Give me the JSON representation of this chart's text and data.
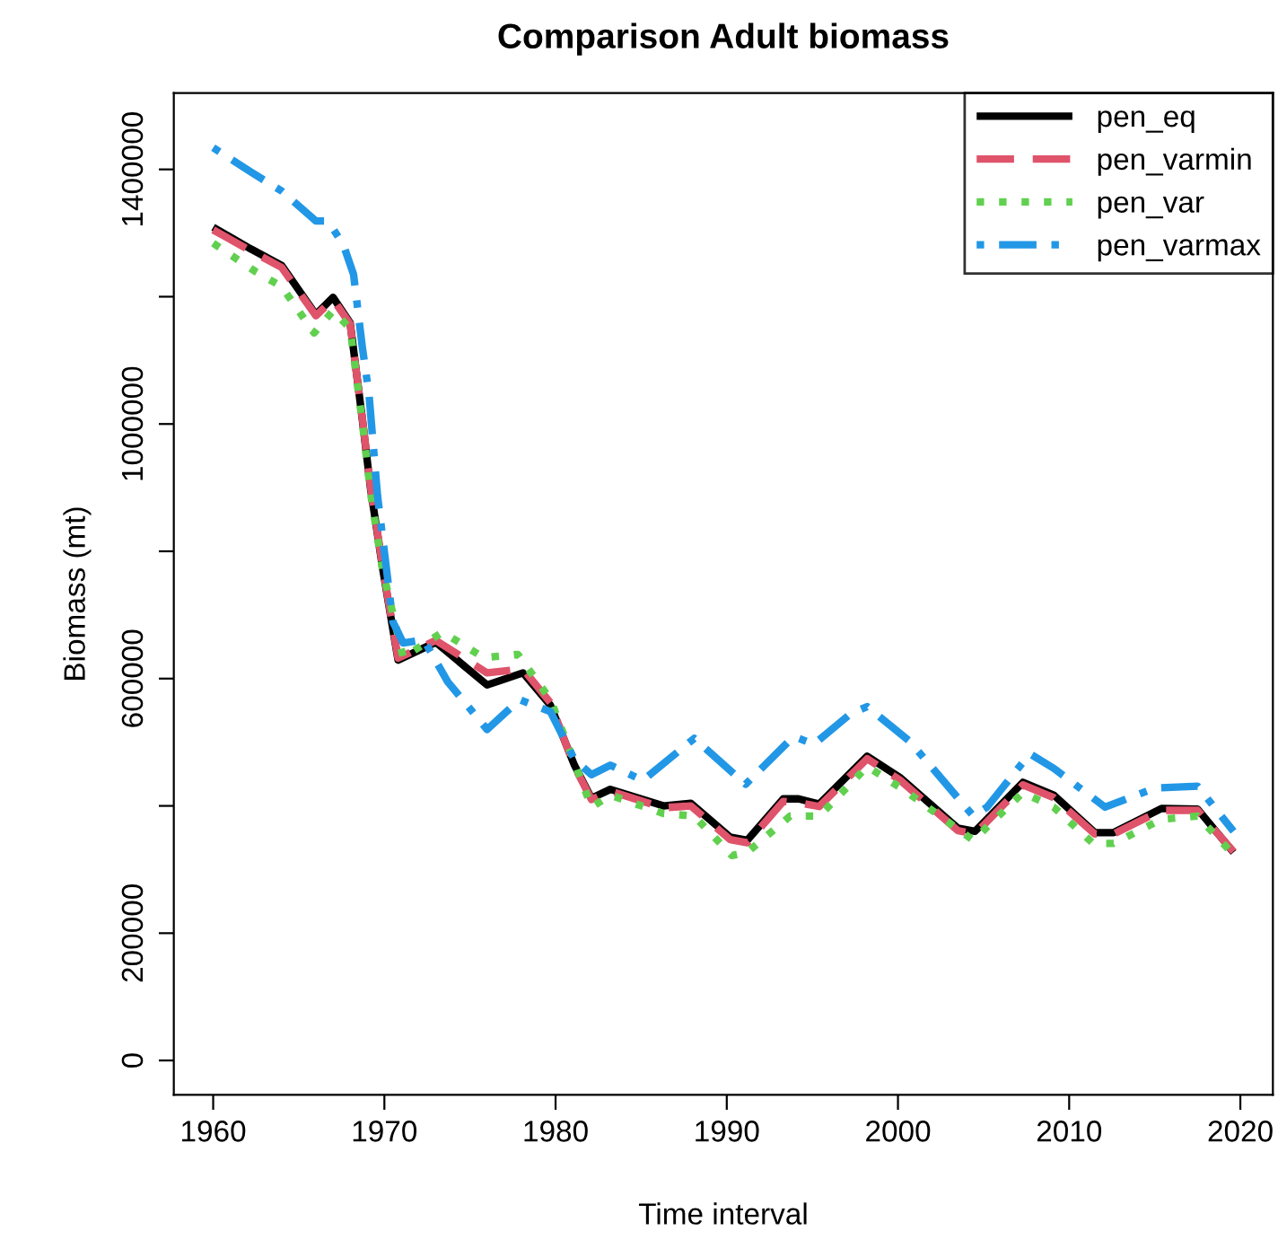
{
  "chart_data": {
    "type": "line",
    "title": "Comparison Adult biomass",
    "xlabel": "Time interval",
    "ylabel": "Biomass (mt)",
    "xlim": [
      1957.7,
      2021.9
    ],
    "ylim": [
      -54000,
      1520000
    ],
    "xticks": [
      1960,
      1970,
      1980,
      1990,
      2000,
      2010,
      2020
    ],
    "yticks": [
      0,
      200000,
      {
        "value": 400000,
        "label": null
      },
      600000,
      {
        "value": 800000,
        "label": null
      },
      1000000,
      {
        "value": 1200000,
        "label": null
      },
      1400000
    ],
    "grid": false,
    "legend": "top right",
    "marker": "none",
    "series": [
      {
        "name": "pen_eq",
        "color": "#000000",
        "line_style": "solid",
        "x": [
          1960,
          1962.2,
          1964,
          1966,
          1967,
          1968,
          1968.7,
          1969.2,
          1969.9,
          1970.8,
          1973,
          1976,
          1978.1,
          1979.7,
          1981.1,
          1982.1,
          1983.2,
          1986.3,
          1987.9,
          1990.2,
          1991.2,
          1993.3,
          1994.2,
          1995.4,
          1998.2,
          2000.1,
          2003.5,
          2004.5,
          2007.3,
          2009.1,
          2011.5,
          2012.6,
          2015.4,
          2017.5,
          2019.6
        ],
        "values": [
          1309000,
          1275000,
          1249000,
          1172000,
          1199000,
          1159000,
          1010000,
          897000,
          773000,
          629000,
          657000,
          590000,
          609000,
          558000,
          464000,
          412000,
          426000,
          400000,
          404000,
          351000,
          346000,
          411000,
          411000,
          403000,
          478000,
          445000,
          365000,
          360000,
          437000,
          417000,
          358000,
          358000,
          396000,
          395000,
          327000
        ]
      },
      {
        "name": "pen_varmin",
        "color": "#df536b",
        "line_style": "dashed",
        "x": [
          1960,
          1962.2,
          1964,
          1966,
          1967,
          1968,
          1968.7,
          1969.2,
          1969.9,
          1970.8,
          1973,
          1976,
          1978.1,
          1979.7,
          1981.1,
          1982.1,
          1983.2,
          1986.3,
          1987.9,
          1990.2,
          1991.2,
          1993.3,
          1994.2,
          1995.4,
          1998.2,
          2000.1,
          2003.5,
          2004.5,
          2007.3,
          2009.1,
          2011.5,
          2012.6,
          2015.4,
          2017.5,
          2019.6
        ],
        "values": [
          1305000,
          1272000,
          1246000,
          1170000,
          1196000,
          1157000,
          1012000,
          900000,
          776000,
          632000,
          660000,
          609000,
          615000,
          562000,
          462000,
          410000,
          423000,
          397000,
          400000,
          347000,
          342000,
          407000,
          405000,
          399000,
          474000,
          441000,
          361000,
          356000,
          433000,
          413000,
          356000,
          356000,
          393000,
          393000,
          328000
        ]
      },
      {
        "name": "pen_var",
        "color": "#61d04f",
        "line_style": "dotted",
        "x": [
          1960,
          1962.5,
          1964,
          1965.9,
          1967,
          1968,
          1968.7,
          1969.2,
          1969.9,
          1971.1,
          1973.4,
          1975.8,
          1977.8,
          1979.7,
          1982.1,
          1983.2,
          1986.3,
          1988.1,
          1990.3,
          1991.2,
          1993.7,
          1995.4,
          1998.2,
          2000.3,
          2004.4,
          2007.3,
          2009.1,
          2011.4,
          2012.6,
          2015.4,
          2017.5,
          2019.3
        ],
        "values": [
          1284000,
          1239000,
          1216000,
          1143000,
          1178000,
          1150000,
          1005000,
          890000,
          770000,
          633000,
          673000,
          633000,
          638000,
          567000,
          398000,
          417000,
          388000,
          384000,
          322000,
          327000,
          384000,
          384000,
          462000,
          426000,
          346000,
          421000,
          398000,
          341000,
          341000,
          379000,
          384000,
          332000
        ]
      },
      {
        "name": "pen_varmax",
        "color": "#2297e6",
        "line_style": "dashdot",
        "x": [
          1960,
          1962.2,
          1964,
          1966,
          1966.7,
          1967.6,
          1968.2,
          1968.7,
          1969.1,
          1969.6,
          1970.5,
          1971.1,
          1972.3,
          1973.7,
          1976,
          1977.9,
          1979.7,
          1981.1,
          1982.1,
          1983.2,
          1985.1,
          1988.1,
          1991.1,
          1993.9,
          1995.1,
          1997.2,
          1998.2,
          2000.7,
          2004.4,
          2005.2,
          2007.7,
          2009.1,
          2012.1,
          2015,
          2017.5,
          2019.6
        ],
        "values": [
          1434000,
          1396000,
          1366000,
          1319000,
          1319000,
          1282000,
          1235000,
          1123000,
          1047000,
          887000,
          689000,
          656000,
          661000,
          595000,
          520000,
          567000,
          548000,
          473000,
          449000,
          464000,
          440000,
          506000,
          434000,
          509000,
          497000,
          544000,
          556000,
          501000,
          384000,
          398000,
          482000,
          459000,
          398000,
          428000,
          431000,
          360000
        ]
      }
    ]
  }
}
